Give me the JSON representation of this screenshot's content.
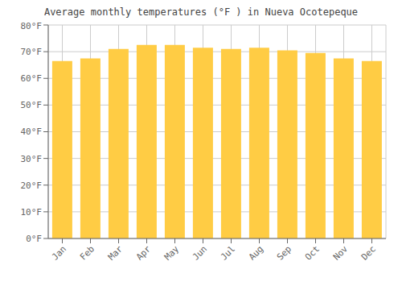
{
  "chart_data": {
    "type": "bar",
    "title": "Average monthly temperatures (°F ) in Nueva Ocotepeque",
    "categories": [
      "Jan",
      "Feb",
      "Mar",
      "Apr",
      "May",
      "Jun",
      "Jul",
      "Aug",
      "Sep",
      "Oct",
      "Nov",
      "Dec"
    ],
    "values": [
      66.5,
      67.5,
      71.0,
      72.5,
      72.5,
      71.5,
      71.0,
      71.5,
      70.5,
      69.5,
      67.5,
      66.5
    ],
    "color": "#FFCC44",
    "ylim": [
      0,
      80
    ],
    "yticks": [
      {
        "value": 0,
        "label": "0°F"
      },
      {
        "value": 10,
        "label": "10°F"
      },
      {
        "value": 20,
        "label": "20°F"
      },
      {
        "value": 30,
        "label": "30°F"
      },
      {
        "value": 40,
        "label": "40°F"
      },
      {
        "value": 50,
        "label": "50°F"
      },
      {
        "value": 60,
        "label": "60°F"
      },
      {
        "value": 70,
        "label": "70°F"
      },
      {
        "value": 80,
        "label": "80°F"
      }
    ],
    "grid": true
  }
}
